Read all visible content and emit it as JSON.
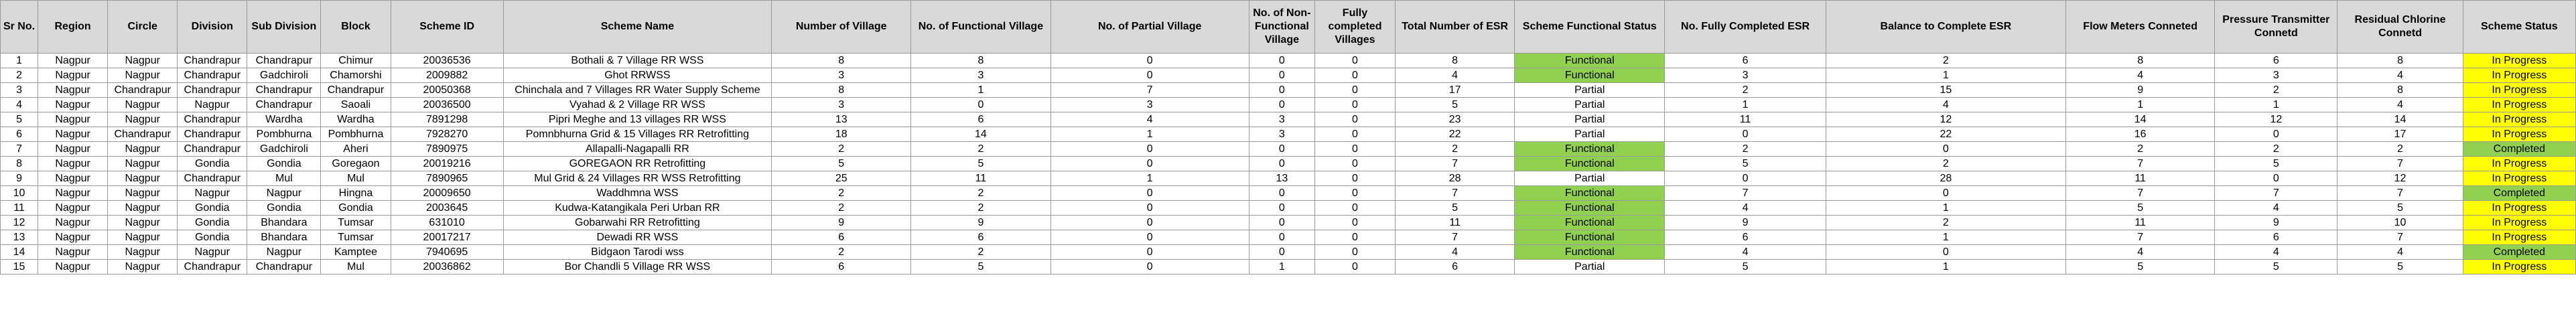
{
  "colors": {
    "header_bg": "#d9d9d9",
    "functional_bg": "#92d050",
    "in_progress_bg": "#ffff00",
    "completed_bg": "#92d050"
  },
  "headers": [
    "Sr No.",
    "Region",
    "Circle",
    "Division",
    "Sub Division",
    "Block",
    "Scheme ID",
    "Scheme Name",
    "Number of Village",
    "No. of Functional Village",
    "No. of Partial Village",
    "No. of Non-Functional Village",
    "Fully completed Villages",
    "Total Number of ESR",
    "Scheme Functional Status",
    "No. Fully Completed ESR",
    "Balance to Complete ESR",
    "Flow Meters Conneted",
    "Pressure Transmitter Connetd",
    "Residual Chlorine Connetd",
    "Scheme Status"
  ],
  "rows": [
    [
      "1",
      "Nagpur",
      "Nagpur",
      "Chandrapur",
      "Chandrapur",
      "Chimur",
      "20036536",
      "Bothali & 7 Village RR WSS",
      "8",
      "8",
      "0",
      "0",
      "0",
      "8",
      "Functional",
      "6",
      "2",
      "8",
      "6",
      "8",
      "In Progress"
    ],
    [
      "2",
      "Nagpur",
      "Nagpur",
      "Chandrapur",
      "Gadchiroli",
      "Chamorshi",
      "2009882",
      "Ghot RRWSS",
      "3",
      "3",
      "0",
      "0",
      "0",
      "4",
      "Functional",
      "3",
      "1",
      "4",
      "3",
      "4",
      "In Progress"
    ],
    [
      "3",
      "Nagpur",
      "Chandrapur",
      "Chandrapur",
      "Chandrapur",
      "Chandrapur",
      "20050368",
      "Chinchala and 7 Villages RR Water Supply Scheme",
      "8",
      "1",
      "7",
      "0",
      "0",
      "17",
      "Partial",
      "2",
      "15",
      "9",
      "2",
      "8",
      "In Progress"
    ],
    [
      "4",
      "Nagpur",
      "Nagpur",
      "Nagpur",
      "Chandrapur",
      "Saoali",
      "20036500",
      "Vyahad & 2 Village RR WSS",
      "3",
      "0",
      "3",
      "0",
      "0",
      "5",
      "Partial",
      "1",
      "4",
      "1",
      "1",
      "4",
      "In Progress"
    ],
    [
      "5",
      "Nagpur",
      "Nagpur",
      "Chandrapur",
      "Wardha",
      "Wardha",
      "7891298",
      "Pipri Meghe and 13 villages RR WSS",
      "13",
      "6",
      "4",
      "3",
      "0",
      "23",
      "Partial",
      "11",
      "12",
      "14",
      "12",
      "14",
      "In Progress"
    ],
    [
      "6",
      "Nagpur",
      "Chandrapur",
      "Chandrapur",
      "Pombhurna",
      "Pombhurna",
      "7928270",
      "Pomnbhurna Grid & 15 Villages RR Retrofitting",
      "18",
      "14",
      "1",
      "3",
      "0",
      "22",
      "Partial",
      "0",
      "22",
      "16",
      "0",
      "17",
      "In Progress"
    ],
    [
      "7",
      "Nagpur",
      "Nagpur",
      "Chandrapur",
      "Gadchiroli",
      "Aheri",
      "7890975",
      "Allapalli-Nagapalli RR",
      "2",
      "2",
      "0",
      "0",
      "0",
      "2",
      "Functional",
      "2",
      "0",
      "2",
      "2",
      "2",
      "Completed"
    ],
    [
      "8",
      "Nagpur",
      "Nagpur",
      "Gondia",
      "Gondia",
      "Goregaon",
      "20019216",
      "GOREGAON RR Retrofitting",
      "5",
      "5",
      "0",
      "0",
      "0",
      "7",
      "Functional",
      "5",
      "2",
      "7",
      "5",
      "7",
      "In Progress"
    ],
    [
      "9",
      "Nagpur",
      "Nagpur",
      "Chandrapur",
      "Mul",
      "Mul",
      "7890965",
      "Mul Grid & 24 Villages  RR WSS Retrofitting",
      "25",
      "11",
      "1",
      "13",
      "0",
      "28",
      "Partial",
      "0",
      "28",
      "11",
      "0",
      "12",
      "In Progress"
    ],
    [
      "10",
      "Nagpur",
      "Nagpur",
      "Nagpur",
      "Nagpur",
      "Hingna",
      "20009650",
      "Waddhmna WSS",
      "2",
      "2",
      "0",
      "0",
      "0",
      "7",
      "Functional",
      "7",
      "0",
      "7",
      "7",
      "7",
      "Completed"
    ],
    [
      "11",
      "Nagpur",
      "Nagpur",
      "Gondia",
      "Gondia",
      "Gondia",
      "2003645",
      "Kudwa-Katangikala Peri Urban RR",
      "2",
      "2",
      "0",
      "0",
      "0",
      "5",
      "Functional",
      "4",
      "1",
      "5",
      "4",
      "5",
      "In Progress"
    ],
    [
      "12",
      "Nagpur",
      "Nagpur",
      "Gondia",
      "Bhandara",
      "Tumsar",
      "631010",
      "Gobarwahi RR Retrofitting",
      "9",
      "9",
      "0",
      "0",
      "0",
      "11",
      "Functional",
      "9",
      "2",
      "11",
      "9",
      "10",
      "In Progress"
    ],
    [
      "13",
      "Nagpur",
      "Nagpur",
      "Gondia",
      "Bhandara",
      "Tumsar",
      "20017217",
      "Dewadi RR WSS",
      "6",
      "6",
      "0",
      "0",
      "0",
      "7",
      "Functional",
      "6",
      "1",
      "7",
      "6",
      "7",
      "In Progress"
    ],
    [
      "14",
      "Nagpur",
      "Nagpur",
      "Nagpur",
      "Nagpur",
      "Kamptee",
      "7940695",
      "Bidgaon Tarodi wss",
      "2",
      "2",
      "0",
      "0",
      "0",
      "4",
      "Functional",
      "4",
      "0",
      "4",
      "4",
      "4",
      "Completed"
    ],
    [
      "15",
      "Nagpur",
      "Nagpur",
      "Chandrapur",
      "Chandrapur",
      "Mul",
      "20036862",
      "Bor Chandli 5 Village RR WSS",
      "6",
      "5",
      "0",
      "1",
      "0",
      "6",
      "Partial",
      "5",
      "1",
      "5",
      "5",
      "5",
      "In Progress"
    ]
  ]
}
